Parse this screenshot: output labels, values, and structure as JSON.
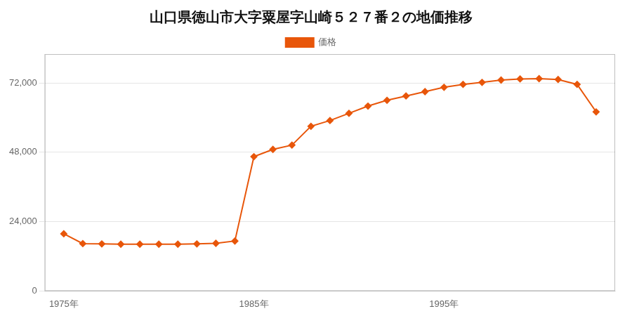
{
  "chart_data": {
    "type": "line",
    "title": "山口県徳山市大字粟屋字山崎５２７番２の地価推移",
    "x": [
      1975,
      1976,
      1977,
      1978,
      1979,
      1980,
      1981,
      1982,
      1983,
      1984,
      1985,
      1986,
      1987,
      1988,
      1989,
      1990,
      1991,
      1992,
      1993,
      1994,
      1995,
      1996,
      1997,
      1998,
      1999,
      2000,
      2001,
      2002,
      2003
    ],
    "series": [
      {
        "name": "価格",
        "color": "#E8560A",
        "marker": "diamond",
        "values": [
          19800,
          16400,
          16300,
          16200,
          16200,
          16200,
          16200,
          16300,
          16500,
          17300,
          46500,
          49000,
          50500,
          57000,
          59000,
          61500,
          64000,
          66000,
          67500,
          69000,
          70500,
          71500,
          72200,
          73000,
          73400,
          73500,
          73200,
          71500,
          62000
        ]
      }
    ],
    "xlim": [
      1974,
      2004
    ],
    "xticks": [
      {
        "value": 1975,
        "label": "1975年"
      },
      {
        "value": 1985,
        "label": "1985年"
      },
      {
        "value": 1995,
        "label": "1995年"
      }
    ],
    "ylim": [
      0,
      82000
    ],
    "yticks": [
      0,
      {
        "value": 24000,
        "label": "24,000"
      },
      {
        "value": 48000,
        "label": "48,000"
      },
      {
        "value": 72000,
        "label": "72,000"
      }
    ],
    "grid": "y",
    "legend": "top"
  }
}
